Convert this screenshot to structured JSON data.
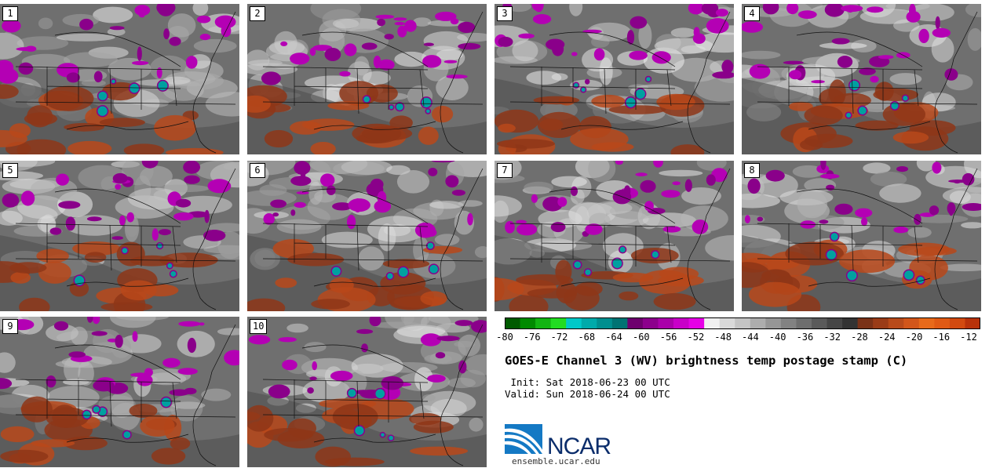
{
  "title": "GOES-E Channel 3 (WV) brightness temp postage stamp (C)",
  "init": " Init: Sat 2018-06-23 00 UTC",
  "valid": "Valid: Sun 2018-06-24 00 UTC",
  "panels": [
    {
      "label": "1"
    },
    {
      "label": "2"
    },
    {
      "label": "3"
    },
    {
      "label": "4"
    },
    {
      "label": "5"
    },
    {
      "label": "6"
    },
    {
      "label": "7"
    },
    {
      "label": "8"
    },
    {
      "label": "9"
    },
    {
      "label": "10"
    }
  ],
  "colorbar": {
    "ticks": [
      "-80",
      "-76",
      "-72",
      "-68",
      "-64",
      "-60",
      "-56",
      "-52",
      "-48",
      "-44",
      "-40",
      "-36",
      "-32",
      "-28",
      "-24",
      "-20",
      "-16",
      "-12"
    ],
    "colors": [
      "#005a00",
      "#008a00",
      "#12b412",
      "#22dc22",
      "#00c8c8",
      "#00aaaa",
      "#008f8f",
      "#007373",
      "#6e006e",
      "#8c008c",
      "#aa00aa",
      "#c800c8",
      "#e600e6",
      "#f0f0f0",
      "#d9d9d9",
      "#c4c4c4",
      "#adadad",
      "#969696",
      "#828282",
      "#6e6e6e",
      "#5a5a5a",
      "#464646",
      "#333333",
      "#7a3218",
      "#9a3c18",
      "#b84a1a",
      "#d2561a",
      "#e86a1a",
      "#e05a14",
      "#d24a10",
      "#b8320a"
    ]
  },
  "logo": {
    "text": "NCAR",
    "url": "ensemble.ucar.edu"
  }
}
